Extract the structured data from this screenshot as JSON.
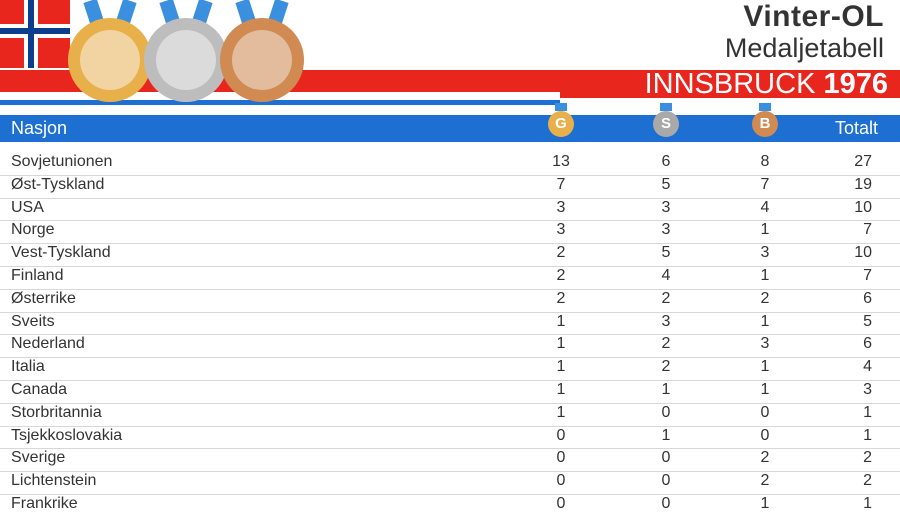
{
  "header": {
    "title": "Vinter-OL",
    "subtitle": "Medaljetabell",
    "event_city": "INNSBRUCK",
    "event_year": "1976"
  },
  "columns": {
    "nation": "Nasjon",
    "gold": "G",
    "silver": "S",
    "bronze": "B",
    "total": "Totalt"
  },
  "colors": {
    "red": "#e8261d",
    "blue": "#1d6fd1",
    "gold": "#e8b04a",
    "silver": "#bdbdbd",
    "bronze": "#d08a52"
  },
  "rows": [
    {
      "nation": "Sovjetunionen",
      "g": "13",
      "s": "6",
      "b": "8",
      "t": "27"
    },
    {
      "nation": "Øst-Tyskland",
      "g": "7",
      "s": "5",
      "b": "7",
      "t": "19"
    },
    {
      "nation": "USA",
      "g": "3",
      "s": "3",
      "b": "4",
      "t": "10"
    },
    {
      "nation": "Norge",
      "g": "3",
      "s": "3",
      "b": "1",
      "t": "7"
    },
    {
      "nation": "Vest-Tyskland",
      "g": "2",
      "s": "5",
      "b": "3",
      "t": "10"
    },
    {
      "nation": "Finland",
      "g": "2",
      "s": "4",
      "b": "1",
      "t": "7"
    },
    {
      "nation": "Østerrike",
      "g": "2",
      "s": "2",
      "b": "2",
      "t": "6"
    },
    {
      "nation": "Sveits",
      "g": "1",
      "s": "3",
      "b": "1",
      "t": "5"
    },
    {
      "nation": "Nederland",
      "g": "1",
      "s": "2",
      "b": "3",
      "t": "6"
    },
    {
      "nation": "Italia",
      "g": "1",
      "s": "2",
      "b": "1",
      "t": "4"
    },
    {
      "nation": "Canada",
      "g": "1",
      "s": "1",
      "b": "1",
      "t": "3"
    },
    {
      "nation": "Storbritannia",
      "g": "1",
      "s": "0",
      "b": "0",
      "t": "1"
    },
    {
      "nation": "Tsjekkoslovakia",
      "g": "0",
      "s": "1",
      "b": "0",
      "t": "1"
    },
    {
      "nation": "Sverige",
      "g": "0",
      "s": "0",
      "b": "2",
      "t": "2"
    },
    {
      "nation": "Lichtenstein",
      "g": "0",
      "s": "0",
      "b": "2",
      "t": "2"
    },
    {
      "nation": "Frankrike",
      "g": "0",
      "s": "0",
      "b": "1",
      "t": "1"
    }
  ]
}
